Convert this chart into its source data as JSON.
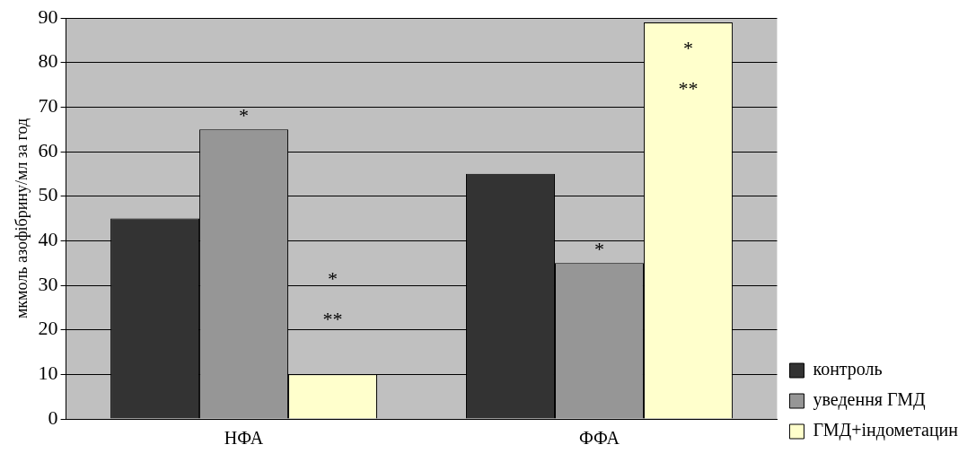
{
  "chart_data": {
    "type": "bar",
    "ylabel": "мкмоль азофібрину/мл за год",
    "categories": [
      "НФА",
      "ФФА"
    ],
    "series": [
      {
        "name": "контроль",
        "color": "#333333",
        "values": [
          45,
          55
        ]
      },
      {
        "name": "уведення ГМД",
        "color": "#969696",
        "values": [
          65,
          35
        ]
      },
      {
        "name": "ГМД+індометацин",
        "color": "#ffffcc",
        "values": [
          10,
          89
        ]
      }
    ],
    "ylim": [
      0,
      90
    ],
    "yticks": [
      0,
      10,
      20,
      30,
      40,
      50,
      60,
      70,
      80,
      90
    ],
    "grid": "y",
    "legend": "bottom right",
    "annotations": [
      {
        "text": "*",
        "x": "НФА",
        "y": 65
      },
      "*",
      "**",
      {
        "text": "*",
        "x": "ФФА",
        "y": 35
      },
      "*",
      "**"
    ]
  }
}
